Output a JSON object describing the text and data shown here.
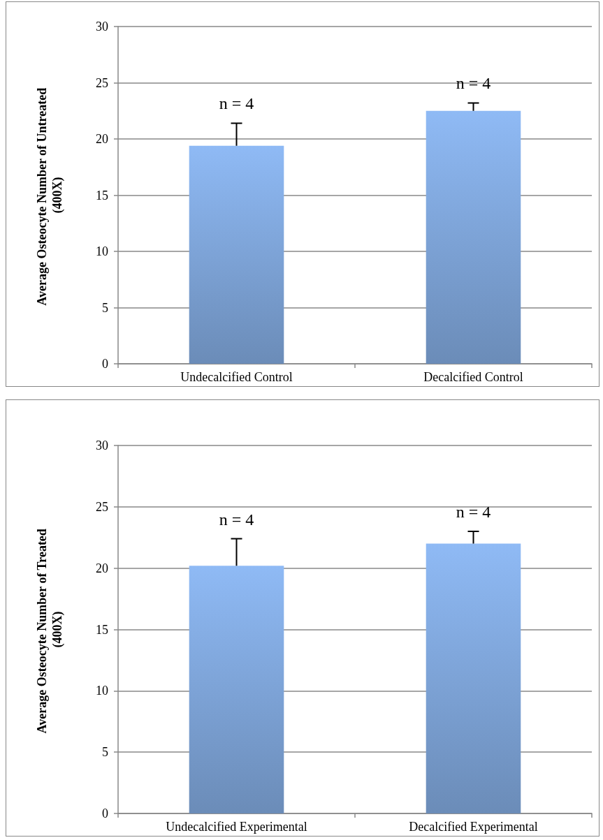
{
  "chart_data": [
    {
      "type": "bar",
      "categories": [
        "Undecalcified Control",
        "Decalcified Control"
      ],
      "ylabel": "Average Osteocyte Number of Untreated (400X)",
      "values": [
        19.4,
        22.5
      ],
      "errors": [
        [
          19.4,
          21.4
        ],
        [
          22.5,
          23.2
        ]
      ],
      "color": "#8fbaf5",
      "ylim": [
        0,
        30
      ],
      "yticks": [
        0,
        5,
        10,
        15,
        20,
        25,
        30
      ],
      "grid": "y",
      "annotations": [
        "n = 4",
        "n = 4"
      ]
    },
    {
      "type": "bar",
      "categories": [
        "Undecalcified Experimental",
        "Decalcified Experimental"
      ],
      "ylabel": "Average Osteocyte Number of Treated (400X)",
      "values": [
        20.2,
        22.0
      ],
      "errors": [
        [
          20.2,
          22.4
        ],
        [
          22.0,
          23.0
        ]
      ],
      "color": "#8fbaf5",
      "ylim": [
        0,
        30
      ],
      "yticks": [
        0,
        5,
        10,
        15,
        20,
        25,
        30
      ],
      "grid": "y",
      "annotations": [
        "n = 4",
        "n = 4"
      ]
    }
  ]
}
